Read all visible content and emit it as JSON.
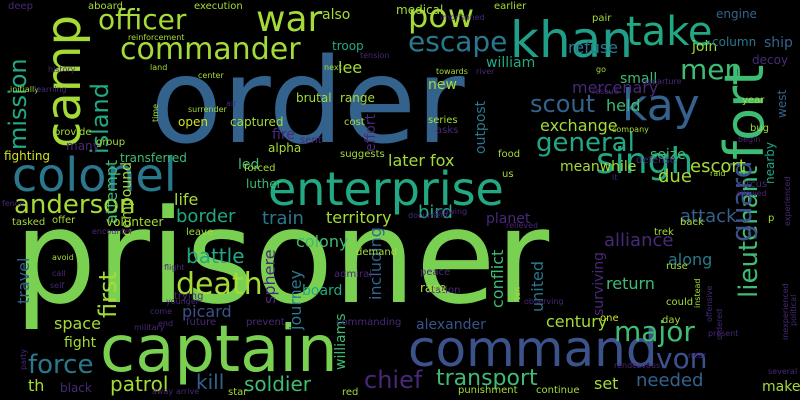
{
  "colors": {
    "background": "#000000",
    "green": "#7ad151",
    "lime": "#a5db36",
    "teal": "#2a788e",
    "steel": "#33638d",
    "sea": "#22a884",
    "jade": "#3fbc73",
    "indigo": "#3b528b",
    "purple": "#482878",
    "deep": "#440154",
    "aqua": "#1f9e89",
    "yellow": "#d2e21b"
  },
  "words": [
    {
      "text": "prisoner",
      "color": "green"
    },
    {
      "text": "order",
      "color": "steel"
    },
    {
      "text": "captain",
      "color": "green"
    },
    {
      "text": "enterprise",
      "color": "sea"
    },
    {
      "text": "command",
      "color": "indigo"
    },
    {
      "text": "fort",
      "color": "jade"
    },
    {
      "text": "camp",
      "color": "lime"
    },
    {
      "text": "khan",
      "color": "aqua"
    },
    {
      "text": "colonel",
      "color": "teal"
    },
    {
      "text": "kay",
      "color": "steel"
    },
    {
      "text": "commander",
      "color": "lime"
    },
    {
      "text": "officer",
      "color": "lime"
    },
    {
      "text": "war",
      "color": "lime"
    },
    {
      "text": "pow",
      "color": "lime"
    },
    {
      "text": "take",
      "color": "sea"
    },
    {
      "text": "singh",
      "color": "sea"
    },
    {
      "text": "general",
      "color": "sea"
    },
    {
      "text": "escape",
      "color": "teal"
    },
    {
      "text": "men",
      "color": "jade"
    },
    {
      "text": "lieutenant",
      "color": "jade"
    },
    {
      "text": "anderson",
      "color": "lime"
    },
    {
      "text": "death",
      "color": "lime"
    },
    {
      "text": "mission",
      "color": "sea"
    },
    {
      "text": "island",
      "color": "sea"
    },
    {
      "text": "force",
      "color": "teal"
    },
    {
      "text": "guard",
      "color": "indigo"
    },
    {
      "text": "scout",
      "color": "steel"
    },
    {
      "text": "major",
      "color": "jade"
    },
    {
      "text": "von",
      "color": "indigo"
    },
    {
      "text": "chief",
      "color": "purple"
    },
    {
      "text": "transport",
      "color": "jade"
    },
    {
      "text": "soldier",
      "color": "jade"
    },
    {
      "text": "patrol",
      "color": "lime"
    },
    {
      "text": "kill",
      "color": "steel"
    },
    {
      "text": "needed",
      "color": "steel"
    },
    {
      "text": "first",
      "color": "lime"
    },
    {
      "text": "attempt",
      "color": "jade"
    },
    {
      "text": "compound",
      "color": "lime"
    },
    {
      "text": "battle",
      "color": "sea"
    },
    {
      "text": "border",
      "color": "sea"
    },
    {
      "text": "train",
      "color": "teal"
    },
    {
      "text": "alliance",
      "color": "purple"
    },
    {
      "text": "attack",
      "color": "steel"
    },
    {
      "text": "escort",
      "color": "lime"
    },
    {
      "text": "due",
      "color": "lime"
    },
    {
      "text": "exchange",
      "color": "lime"
    },
    {
      "text": "held",
      "color": "jade"
    },
    {
      "text": "mercenary",
      "color": "purple"
    },
    {
      "text": "william",
      "color": "sea"
    },
    {
      "text": "small",
      "color": "jade"
    },
    {
      "text": "refuse",
      "color": "teal"
    },
    {
      "text": "join",
      "color": "lime"
    },
    {
      "text": "ship",
      "color": "steel"
    },
    {
      "text": "decoy",
      "color": "purple"
    },
    {
      "text": "column",
      "color": "teal"
    },
    {
      "text": "engine",
      "color": "steel"
    },
    {
      "text": "seize",
      "color": "jade"
    },
    {
      "text": "meanwhile",
      "color": "lime"
    },
    {
      "text": "later fox",
      "color": "lime"
    },
    {
      "text": "territory",
      "color": "lime"
    },
    {
      "text": "bird",
      "color": "sea"
    },
    {
      "text": "planet",
      "color": "purple"
    },
    {
      "text": "return",
      "color": "jade"
    },
    {
      "text": "along",
      "color": "teal"
    },
    {
      "text": "surviving",
      "color": "purple"
    },
    {
      "text": "united",
      "color": "teal"
    },
    {
      "text": "conflict",
      "color": "jade"
    },
    {
      "text": "including",
      "color": "steel"
    },
    {
      "text": "century",
      "color": "lime"
    },
    {
      "text": "alexander",
      "color": "indigo"
    },
    {
      "text": "williams",
      "color": "jade"
    },
    {
      "text": "board",
      "color": "sea"
    },
    {
      "text": "journey",
      "color": "teal"
    },
    {
      "text": "sphere",
      "color": "purple"
    },
    {
      "text": "picard",
      "color": "indigo"
    },
    {
      "text": "space",
      "color": "lime"
    },
    {
      "text": "fight",
      "color": "lime"
    },
    {
      "text": "travel",
      "color": "steel"
    },
    {
      "text": "colony",
      "color": "jade"
    },
    {
      "text": "life",
      "color": "lime"
    },
    {
      "text": "led",
      "color": "jade"
    },
    {
      "text": "luther",
      "color": "jade"
    },
    {
      "text": "fire",
      "color": "purple"
    },
    {
      "text": "alpha",
      "color": "lime"
    },
    {
      "text": "captured",
      "color": "lime"
    },
    {
      "text": "outpost",
      "color": "teal"
    },
    {
      "text": "effort",
      "color": "purple"
    },
    {
      "text": "lee",
      "color": "lime"
    },
    {
      "text": "also",
      "color": "lime"
    },
    {
      "text": "new",
      "color": "lime"
    },
    {
      "text": "troop",
      "color": "sea"
    },
    {
      "text": "medical",
      "color": "lime"
    },
    {
      "text": "set",
      "color": "lime"
    },
    {
      "text": "black",
      "color": "purple"
    },
    {
      "text": "th",
      "color": "lime"
    },
    {
      "text": "make",
      "color": "lime"
    },
    {
      "text": "nearby",
      "color": "sea"
    },
    {
      "text": "west",
      "color": "steel"
    },
    {
      "text": "transferred",
      "color": "jade"
    },
    {
      "text": "fighting",
      "color": "yellow"
    },
    {
      "text": "many",
      "color": "purple"
    },
    {
      "text": "range",
      "color": "lime"
    },
    {
      "text": "brutal",
      "color": "lime"
    },
    {
      "text": "open",
      "color": "yellow"
    },
    {
      "text": "suggests",
      "color": "lime"
    },
    {
      "text": "forced",
      "color": "lime"
    },
    {
      "text": "defense",
      "color": "purple"
    },
    {
      "text": "star",
      "color": "lime"
    },
    {
      "text": "punishment",
      "color": "lime"
    },
    {
      "text": "continue",
      "color": "lime"
    },
    {
      "text": "red",
      "color": "lime"
    },
    {
      "text": "volunteer",
      "color": "lime"
    },
    {
      "text": "offer",
      "color": "lime"
    },
    {
      "text": "tasked",
      "color": "lime"
    },
    {
      "text": "leave",
      "color": "lime"
    },
    {
      "text": "admiral",
      "color": "purple"
    },
    {
      "text": "station",
      "color": "purple"
    },
    {
      "text": "peace",
      "color": "purple"
    },
    {
      "text": "race",
      "color": "lime"
    },
    {
      "text": "demand",
      "color": "lime"
    },
    {
      "text": "trek",
      "color": "lime"
    },
    {
      "text": "back",
      "color": "lime"
    },
    {
      "text": "ruse",
      "color": "lime"
    },
    {
      "text": "could",
      "color": "lime"
    },
    {
      "text": "day",
      "color": "lime"
    },
    {
      "text": "one",
      "color": "yellow"
    },
    {
      "text": "execution",
      "color": "lime"
    },
    {
      "text": "aboard",
      "color": "lime"
    },
    {
      "text": "deep",
      "color": "purple"
    },
    {
      "text": "earlier",
      "color": "lime"
    },
    {
      "text": "pair",
      "color": "lime"
    },
    {
      "text": "reinforcement",
      "color": "lime"
    },
    {
      "text": "imprisoned",
      "color": "purple"
    },
    {
      "text": "tension",
      "color": "purple"
    },
    {
      "text": "center",
      "color": "lime"
    },
    {
      "text": "land",
      "color": "lime"
    },
    {
      "text": "next",
      "color": "lime"
    },
    {
      "text": "towards",
      "color": "lime"
    },
    {
      "text": "river",
      "color": "purple"
    },
    {
      "text": "rescue",
      "color": "purple"
    },
    {
      "text": "departure",
      "color": "purple"
    },
    {
      "text": "company",
      "color": "lime"
    },
    {
      "text": "group",
      "color": "lime"
    },
    {
      "text": "provide",
      "color": "lime"
    },
    {
      "text": "cost",
      "color": "lime"
    },
    {
      "text": "sent",
      "color": "purple"
    },
    {
      "text": "asks",
      "color": "purple"
    },
    {
      "text": "series",
      "color": "lime"
    },
    {
      "text": "food",
      "color": "lime"
    },
    {
      "text": "us",
      "color": "lime"
    },
    {
      "text": "bug",
      "color": "lime"
    },
    {
      "text": "year",
      "color": "lime"
    },
    {
      "text": "raid",
      "color": "lime"
    },
    {
      "text": "allowed",
      "color": "purple"
    },
    {
      "text": "experienced",
      "color": "purple"
    },
    {
      "text": "political",
      "color": "purple"
    },
    {
      "text": "inexperienced",
      "color": "purple"
    },
    {
      "text": "present",
      "color": "purple"
    },
    {
      "text": "near",
      "color": "purple"
    },
    {
      "text": "instead",
      "color": "lime"
    },
    {
      "text": "several",
      "color": "purple"
    },
    {
      "text": "ten",
      "color": "lime"
    },
    {
      "text": "relieved",
      "color": "purple"
    },
    {
      "text": "avoid",
      "color": "lime"
    },
    {
      "text": "call",
      "color": "purple"
    },
    {
      "text": "self",
      "color": "purple"
    },
    {
      "text": "come",
      "color": "purple"
    },
    {
      "text": "party",
      "color": "purple"
    },
    {
      "text": "military",
      "color": "purple"
    },
    {
      "text": "end",
      "color": "purple"
    },
    {
      "text": "younger",
      "color": "purple"
    },
    {
      "text": "future",
      "color": "purple"
    },
    {
      "text": "prevent",
      "color": "purple"
    },
    {
      "text": "commanding",
      "color": "purple"
    },
    {
      "text": "trying",
      "color": "purple"
    },
    {
      "text": "air",
      "color": "purple"
    },
    {
      "text": "surrender",
      "color": "lime"
    },
    {
      "text": "time",
      "color": "lime"
    },
    {
      "text": "initially",
      "color": "lime"
    },
    {
      "text": "learning",
      "color": "purple"
    },
    {
      "text": "history",
      "color": "purple"
    },
    {
      "text": "fence",
      "color": "purple"
    },
    {
      "text": "encounter",
      "color": "purple"
    },
    {
      "text": "flight",
      "color": "purple"
    },
    {
      "text": "observing",
      "color": "purple"
    },
    {
      "text": "rendezvous",
      "color": "purple"
    },
    {
      "text": "document",
      "color": "purple"
    },
    {
      "text": "allowing",
      "color": "purple"
    },
    {
      "text": "it",
      "color": "purple"
    },
    {
      "text": "begin",
      "color": "purple"
    },
    {
      "text": "circus",
      "color": "purple"
    },
    {
      "text": "p",
      "color": "lime"
    },
    {
      "text": "go",
      "color": "lime"
    },
    {
      "text": "ordered",
      "color": "purple"
    },
    {
      "text": "offensive",
      "color": "purple"
    },
    {
      "text": "away",
      "color": "purple"
    },
    {
      "text": "arrive",
      "color": "purple"
    },
    {
      "text": "technology",
      "color": "purple"
    }
  ]
}
